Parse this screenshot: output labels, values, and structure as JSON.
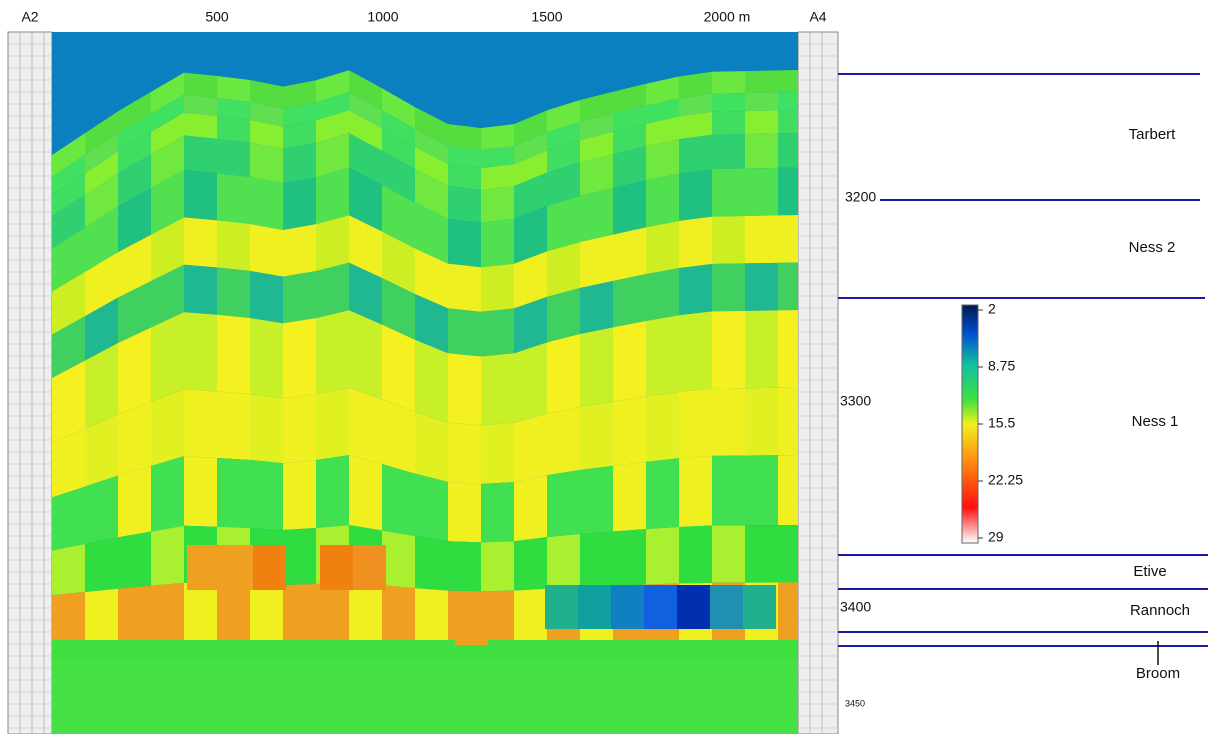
{
  "wells": {
    "left": "A2",
    "right": "A4"
  },
  "distance_labels": [
    500,
    1000,
    1500,
    "2000 m"
  ],
  "depth_labels": [
    3200,
    3300,
    3400,
    3450
  ],
  "colorbar": {
    "ticks": [
      2,
      8.75,
      15.5,
      22.25,
      29
    ]
  },
  "zones": [
    "Tarbert",
    "Ness 2",
    "Ness 1",
    "Etive",
    "Rannoch",
    "Broom"
  ]
}
